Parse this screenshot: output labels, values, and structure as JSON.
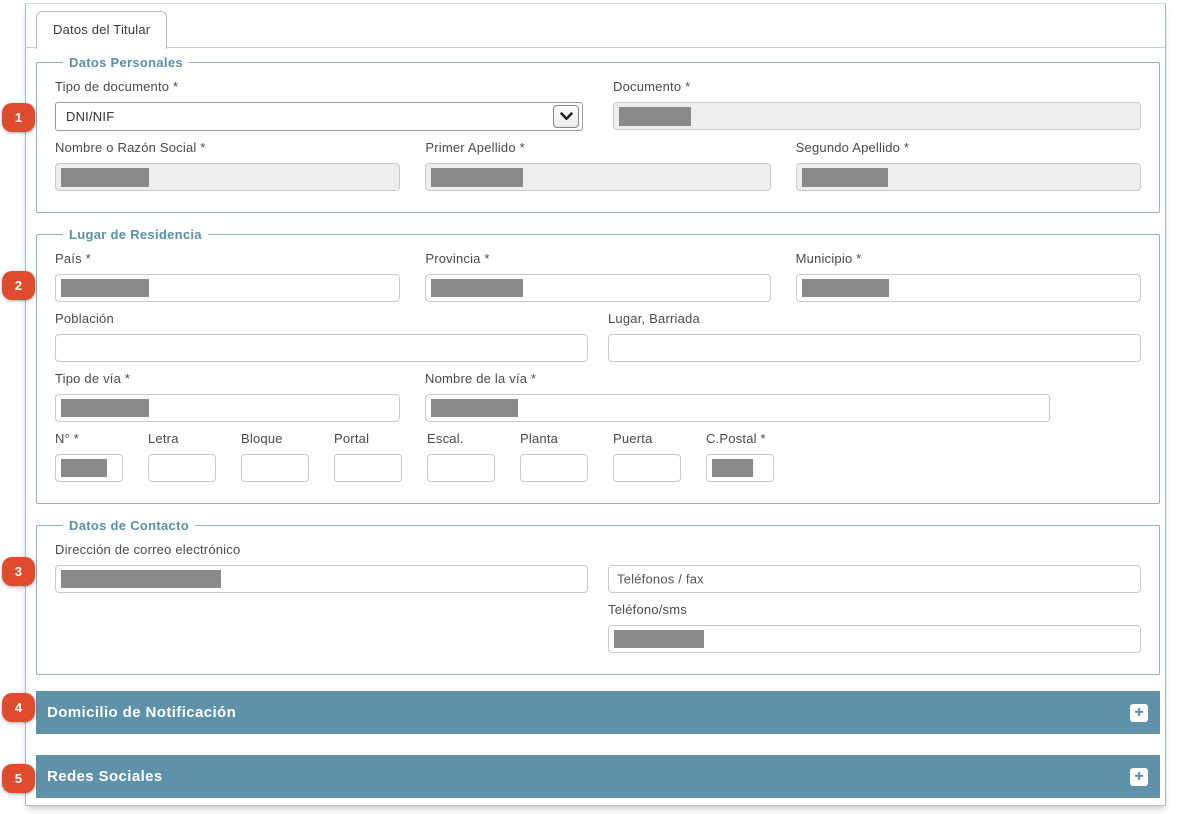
{
  "tab_label": "Datos del Titular",
  "personales": {
    "legend": "Datos Personales",
    "tipo_documento_label": "Tipo de documento *",
    "tipo_documento_value": "DNI/NIF",
    "documento_label": "Documento *",
    "nombre_label": "Nombre o Razón Social *",
    "primer_apellido_label": "Primer Apellido *",
    "segundo_apellido_label": "Segundo Apellido *"
  },
  "residencia": {
    "legend": "Lugar de Residencia",
    "pais_label": "País *",
    "provincia_label": "Provincia *",
    "municipio_label": "Municipio *",
    "poblacion_label": "Población",
    "lugar_barriada_label": "Lugar, Barriada",
    "tipo_via_label": "Tipo de vía *",
    "nombre_via_label": "Nombre de la vía *",
    "numero_label": "N° *",
    "letra_label": "Letra",
    "bloque_label": "Bloque",
    "portal_label": "Portal",
    "escalera_label": "Escal.",
    "planta_label": "Planta",
    "puerta_label": "Puerta",
    "cpostal_label": "C.Postal *"
  },
  "contacto": {
    "legend": "Datos de Contacto",
    "email_label": "Dirección de correo electrónico",
    "telefonos_fax_placeholder": "Teléfonos / fax",
    "telefono_sms_label": "Teléfono/sms"
  },
  "collapsed_sections": {
    "domicilio_notificacion_title": "Domicilio de Notificación",
    "redes_sociales_title": "Redes Sociales",
    "expand_icon": "+"
  },
  "step_badges": [
    "1",
    "2",
    "3",
    "4",
    "5"
  ],
  "colors": {
    "section_bar": "#5d92a9",
    "legend_text": "#5b8fa8",
    "fieldset_border": "#8fb3c3",
    "badge": "#e14b2d",
    "redaction": "#8a8a8a",
    "disabled_input_bg": "#eeeeee"
  }
}
